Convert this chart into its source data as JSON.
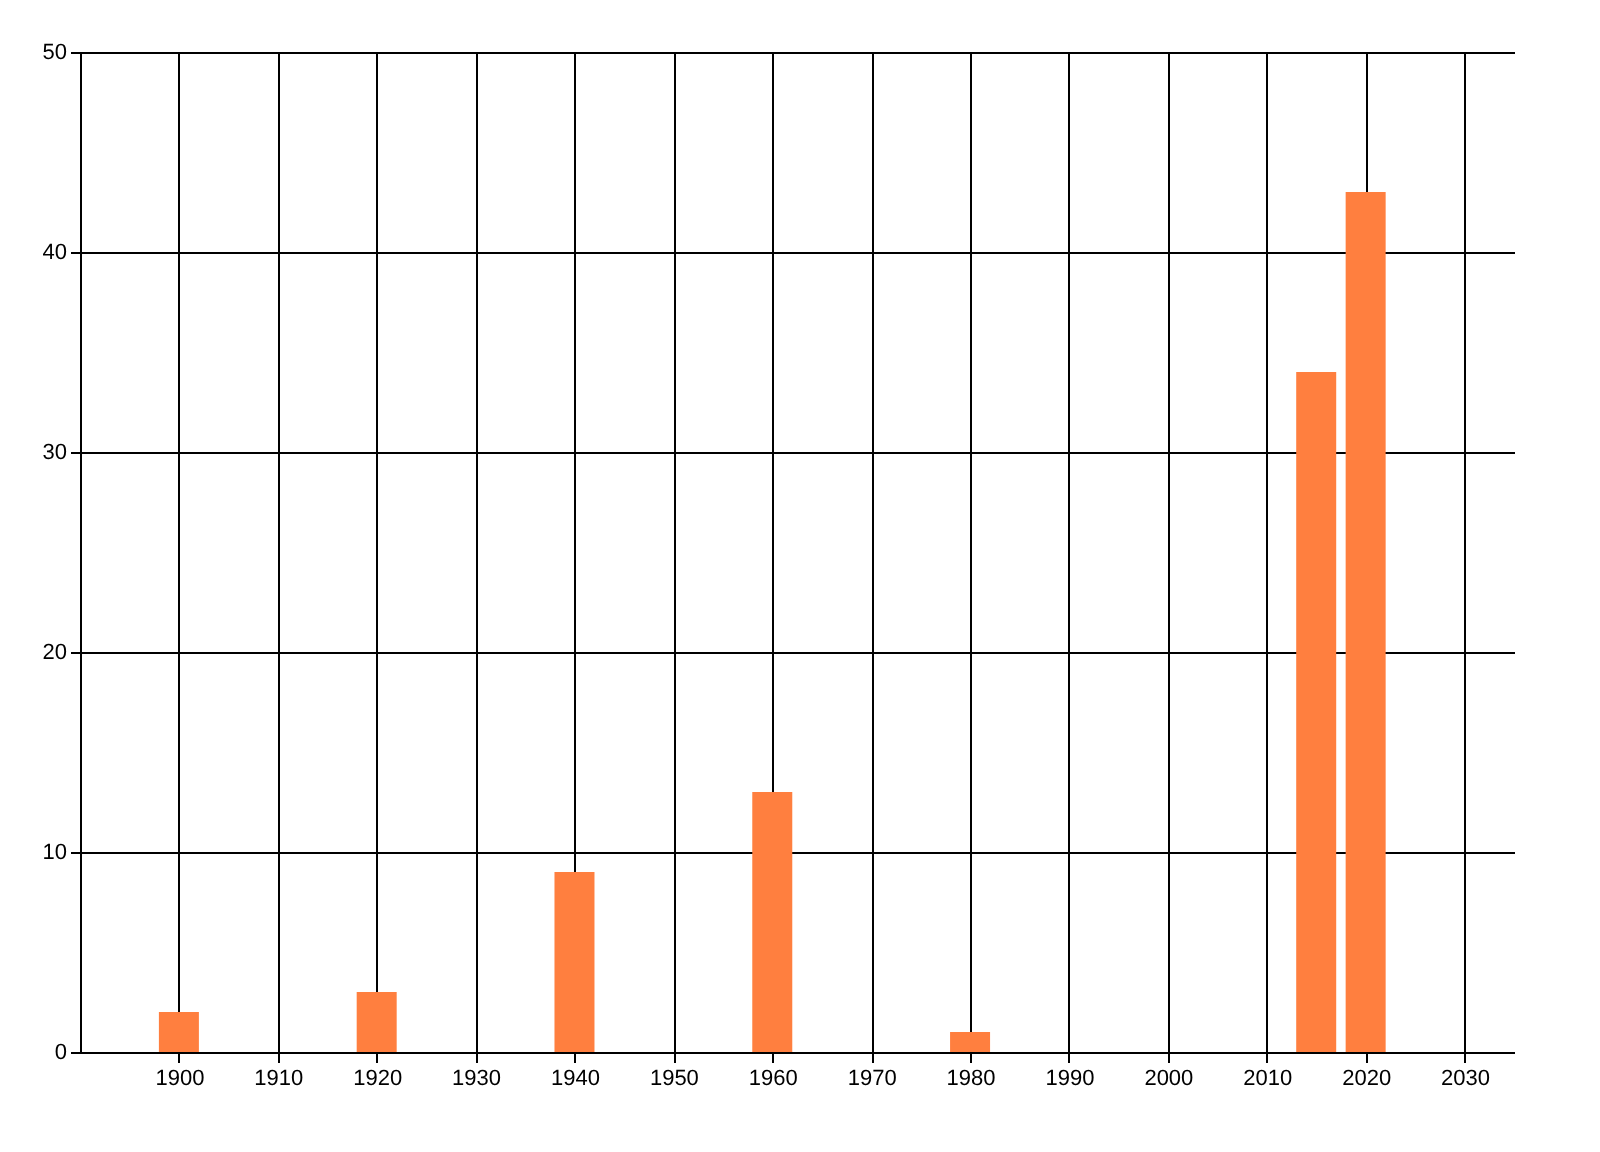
{
  "chart_data": {
    "type": "bar",
    "x": [
      1900,
      1920,
      1940,
      1960,
      1980,
      2015,
      2020
    ],
    "values": [
      2,
      3,
      9,
      13,
      1,
      34,
      43
    ],
    "color": "#ff7f3f",
    "xlim": [
      1890,
      2035
    ],
    "xticks": [
      1900,
      1910,
      1920,
      1930,
      1940,
      1950,
      1960,
      1970,
      1980,
      1990,
      2000,
      2010,
      2020,
      2030
    ],
    "ylim": [
      0,
      50
    ],
    "yticks": [
      0,
      10,
      20,
      30,
      40,
      50
    ],
    "grid": true
  }
}
